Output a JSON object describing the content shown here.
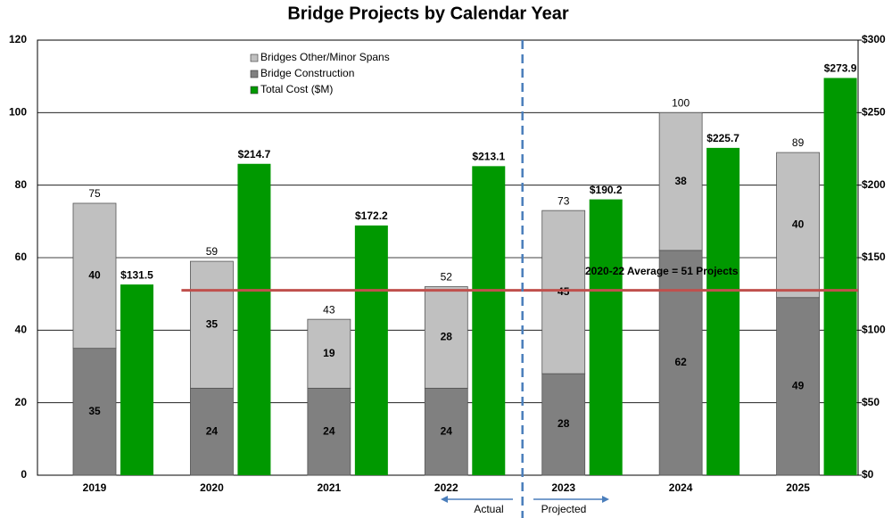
{
  "chart_data": {
    "type": "bar",
    "title": "Bridge Projects by Calendar Year",
    "categories": [
      "2019",
      "2020",
      "2021",
      "2022",
      "2023",
      "2024",
      "2025"
    ],
    "series": [
      {
        "name": "Bridges Other/Minor Spans",
        "color": "#c0c0c0",
        "values": [
          40,
          35,
          19,
          28,
          45,
          38,
          40
        ]
      },
      {
        "name": "Bridge Construction",
        "color": "#808080",
        "values": [
          35,
          24,
          24,
          24,
          28,
          62,
          49
        ]
      },
      {
        "name": "Total Cost ($M)",
        "color": "#009900",
        "axis": "y2",
        "values": [
          131.5,
          214.7,
          172.2,
          213.1,
          190.2,
          225.7,
          273.9
        ],
        "value_labels": [
          "$131.5",
          "$214.7",
          "$172.2",
          "$213.1",
          "$190.2",
          "$225.7",
          "$273.9"
        ]
      }
    ],
    "totals": [
      75,
      59,
      43,
      52,
      73,
      100,
      89
    ],
    "ylim": [
      0,
      120
    ],
    "yticks": [
      0,
      20,
      40,
      60,
      80,
      100,
      120
    ],
    "y2lim": [
      0,
      300
    ],
    "y2ticks": [
      {
        "value": 0,
        "label": "$0"
      },
      {
        "value": 50,
        "label": "$50"
      },
      {
        "value": 100,
        "label": "$100"
      },
      {
        "value": 150,
        "label": "$150"
      },
      {
        "value": 200,
        "label": "$200"
      },
      {
        "value": 250,
        "label": "$250"
      },
      {
        "value": 300,
        "label": "$300"
      }
    ],
    "grid": true,
    "average": {
      "label": "2020-22 Average = 51 Projects",
      "value": 51,
      "color": "#c0504d"
    },
    "divider_labels": [
      "Actual",
      "Projected"
    ]
  }
}
